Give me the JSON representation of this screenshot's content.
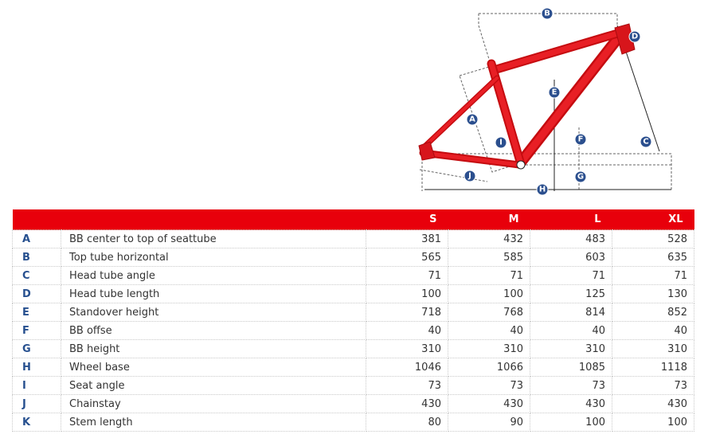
{
  "diagram": {
    "markers": [
      "A",
      "B",
      "C",
      "D",
      "E",
      "F",
      "G",
      "H",
      "I",
      "J"
    ],
    "frame_color": "#e10e14",
    "marker_color": "#2b4f8e"
  },
  "table": {
    "header_color": "#e8000b",
    "columns": [
      "",
      "",
      "S",
      "M",
      "L",
      "XL"
    ],
    "rows": [
      {
        "code": "A",
        "label": "BB center to top of seattube",
        "values": [
          "381",
          "432",
          "483",
          "528"
        ]
      },
      {
        "code": "B",
        "label": "Top tube horizontal",
        "values": [
          "565",
          "585",
          "603",
          "635"
        ]
      },
      {
        "code": "C",
        "label": "Head tube angle",
        "values": [
          "71",
          "71",
          "71",
          "71"
        ]
      },
      {
        "code": "D",
        "label": "Head tube length",
        "values": [
          "100",
          "100",
          "125",
          "130"
        ]
      },
      {
        "code": "E",
        "label": "Standover height",
        "values": [
          "718",
          "768",
          "814",
          "852"
        ]
      },
      {
        "code": "F",
        "label": "BB offse",
        "values": [
          "40",
          "40",
          "40",
          "40"
        ]
      },
      {
        "code": "G",
        "label": "BB height",
        "values": [
          "310",
          "310",
          "310",
          "310"
        ]
      },
      {
        "code": "H",
        "label": "Wheel base",
        "values": [
          "1046",
          "1066",
          "1085",
          "1118"
        ]
      },
      {
        "code": "I",
        "label": "Seat angle",
        "values": [
          "73",
          "73",
          "73",
          "73"
        ]
      },
      {
        "code": "J",
        "label": "Chainstay",
        "values": [
          "430",
          "430",
          "430",
          "430"
        ]
      },
      {
        "code": "K",
        "label": "Stem length",
        "values": [
          "80",
          "90",
          "100",
          "100"
        ]
      }
    ]
  }
}
